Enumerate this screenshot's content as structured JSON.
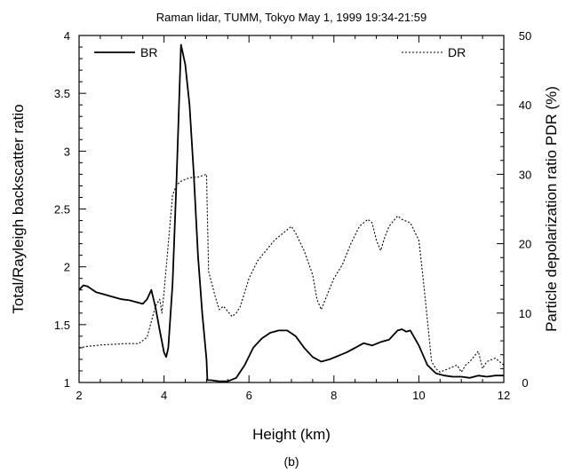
{
  "chart_data": {
    "type": "line",
    "title": "Raman lidar, TUMM, Tokyo    May 1, 1999    19:34-21:59",
    "caption": "(b)",
    "xlabel": "Height (km)",
    "ylabel_left": "Total/Rayleigh backscatter ratio",
    "ylabel_right": "Particle depolarization ratio  PDR (%)",
    "xlim": [
      2,
      12
    ],
    "ylim_left": [
      1,
      4
    ],
    "ylim_right": [
      0,
      50
    ],
    "x_ticks": [
      2,
      4,
      6,
      8,
      10,
      12
    ],
    "y_left_ticks": [
      1,
      1.5,
      2,
      2.5,
      3,
      3.5,
      4
    ],
    "y_right_ticks": [
      0,
      10,
      20,
      30,
      40,
      50
    ],
    "grid": false,
    "legend": [
      {
        "label": "BR",
        "style": "solid",
        "placement": "top-left"
      },
      {
        "label": "DR",
        "style": "dotted",
        "placement": "top-right"
      }
    ],
    "series": [
      {
        "name": "BR",
        "axis": "left",
        "style": "solid",
        "x": [
          2.0,
          2.1,
          2.2,
          2.4,
          2.6,
          2.8,
          3.0,
          3.2,
          3.4,
          3.5,
          3.6,
          3.7,
          3.8,
          3.9,
          4.0,
          4.05,
          4.1,
          4.2,
          4.3,
          4.4,
          4.5,
          4.6,
          4.7,
          4.8,
          4.9,
          5.0,
          5.02,
          5.1,
          5.3,
          5.5,
          5.7,
          5.9,
          6.1,
          6.3,
          6.5,
          6.7,
          6.9,
          7.1,
          7.3,
          7.5,
          7.7,
          7.9,
          8.1,
          8.3,
          8.5,
          8.7,
          8.9,
          9.1,
          9.3,
          9.5,
          9.6,
          9.7,
          9.8,
          10.0,
          10.2,
          10.4,
          10.6,
          10.8,
          11.0,
          11.2,
          11.4,
          11.6,
          11.8,
          12.0
        ],
        "values": [
          1.8,
          1.84,
          1.83,
          1.78,
          1.76,
          1.74,
          1.72,
          1.71,
          1.69,
          1.68,
          1.72,
          1.8,
          1.65,
          1.45,
          1.26,
          1.22,
          1.3,
          1.85,
          2.8,
          3.92,
          3.75,
          3.4,
          2.8,
          2.1,
          1.6,
          1.2,
          1.02,
          1.02,
          1.01,
          1.01,
          1.04,
          1.15,
          1.3,
          1.38,
          1.43,
          1.45,
          1.45,
          1.4,
          1.3,
          1.22,
          1.18,
          1.2,
          1.23,
          1.26,
          1.3,
          1.34,
          1.32,
          1.35,
          1.37,
          1.45,
          1.46,
          1.44,
          1.45,
          1.32,
          1.15,
          1.08,
          1.06,
          1.05,
          1.05,
          1.04,
          1.06,
          1.05,
          1.06,
          1.06
        ]
      },
      {
        "name": "DR",
        "axis": "right",
        "style": "dotted",
        "x": [
          2.0,
          2.2,
          2.5,
          2.8,
          3.1,
          3.4,
          3.6,
          3.8,
          3.9,
          3.95,
          4.0,
          4.1,
          4.2,
          4.3,
          4.4,
          4.6,
          4.8,
          5.0,
          5.05,
          5.2,
          5.3,
          5.4,
          5.6,
          5.7,
          5.8,
          6.0,
          6.2,
          6.4,
          6.6,
          6.8,
          6.9,
          7.0,
          7.1,
          7.3,
          7.5,
          7.6,
          7.7,
          7.8,
          8.0,
          8.2,
          8.4,
          8.6,
          8.8,
          8.9,
          9.0,
          9.1,
          9.2,
          9.3,
          9.5,
          9.6,
          9.8,
          10.0,
          10.1,
          10.2,
          10.3,
          10.4,
          10.5,
          10.7,
          10.9,
          11.0,
          11.1,
          11.2,
          11.4,
          11.5,
          11.6,
          11.8,
          12.0
        ],
        "values": [
          5.0,
          5.2,
          5.4,
          5.5,
          5.6,
          5.6,
          6.5,
          11.0,
          12.0,
          10.0,
          13.0,
          20.0,
          27.0,
          28.5,
          29.0,
          29.5,
          29.6,
          30.0,
          16.0,
          12.5,
          10.5,
          11.0,
          9.5,
          10.0,
          11.0,
          15.0,
          17.5,
          19.0,
          20.5,
          21.5,
          22.0,
          22.5,
          21.5,
          19.0,
          15.5,
          12.0,
          10.5,
          12.0,
          15.0,
          17.0,
          20.0,
          22.5,
          23.5,
          23.0,
          20.5,
          19.0,
          21.0,
          22.5,
          24.0,
          23.5,
          23.0,
          20.5,
          15.0,
          9.0,
          3.0,
          2.0,
          1.5,
          2.0,
          2.5,
          1.5,
          2.5,
          3.0,
          4.5,
          2.0,
          3.0,
          3.5,
          2.5
        ]
      }
    ]
  }
}
